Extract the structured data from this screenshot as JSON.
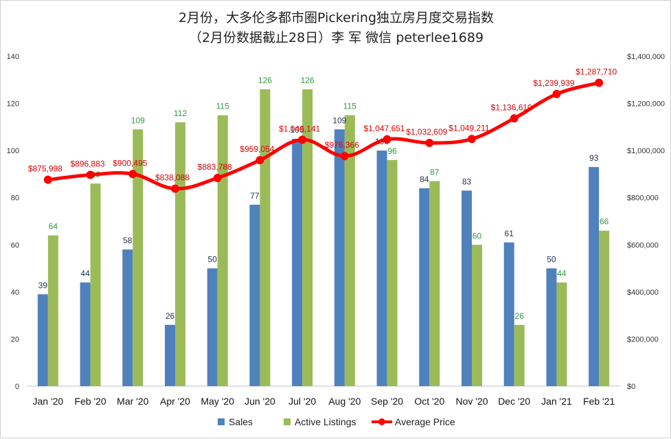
{
  "chart_data": {
    "type": "bar",
    "title": "2月份，大多伦多都市圈Pickering独立房月度交易指数",
    "subtitle": "（2月份数据截止28日）李 军  微信  peterlee1689",
    "categories": [
      "Jan '20",
      "Feb '20",
      "Mar '20",
      "Apr '20",
      "May '20",
      "Jun '20",
      "Jul '20",
      "Aug '20",
      "Sep '20",
      "Oct '20",
      "Nov '20",
      "Dec '20",
      "Jan '21",
      "Feb '21"
    ],
    "series": [
      {
        "name": "Sales",
        "type": "bar",
        "axis": "left",
        "color": "#4f81bd",
        "values": [
          39,
          44,
          58,
          26,
          50,
          77,
          105,
          109,
          100,
          84,
          83,
          61,
          50,
          93
        ]
      },
      {
        "name": "Active Listings",
        "type": "bar",
        "axis": "left",
        "color": "#9bbb59",
        "values": [
          64,
          86,
          109,
          112,
          115,
          126,
          126,
          115,
          96,
          87,
          60,
          26,
          44,
          66
        ]
      },
      {
        "name": "Average Price",
        "type": "line",
        "axis": "right",
        "color": "#ff0000",
        "values": [
          875998,
          896883,
          900495,
          838088,
          883788,
          959054,
          1046141,
          976366,
          1047651,
          1032609,
          1049211,
          1136610,
          1239939,
          1287710
        ],
        "labels": [
          "$875,998",
          "$896,883",
          "$900,495",
          "$838,088",
          "$883,788",
          "$959,054",
          "$1,046,141",
          "$976,366",
          "$1,047,651",
          "$1,032,609",
          "$1,049,211",
          "$1,136,610",
          "$1,239,939",
          "$1,287,710"
        ]
      }
    ],
    "y_left": {
      "min": 0,
      "max": 140,
      "ticks": [
        "0",
        "20",
        "40",
        "60",
        "80",
        "100",
        "120",
        "140"
      ]
    },
    "y_right": {
      "min": 0,
      "max": 1400000,
      "ticks": [
        "$0",
        "$200,000",
        "$400,000",
        "$600,000",
        "$800,000",
        "$1,000,000",
        "$1,200,000",
        "$1,400,000"
      ]
    },
    "legend": {
      "position": "bottom",
      "items": [
        "Sales",
        "Active Listings",
        "Average Price"
      ]
    },
    "grid": false
  }
}
